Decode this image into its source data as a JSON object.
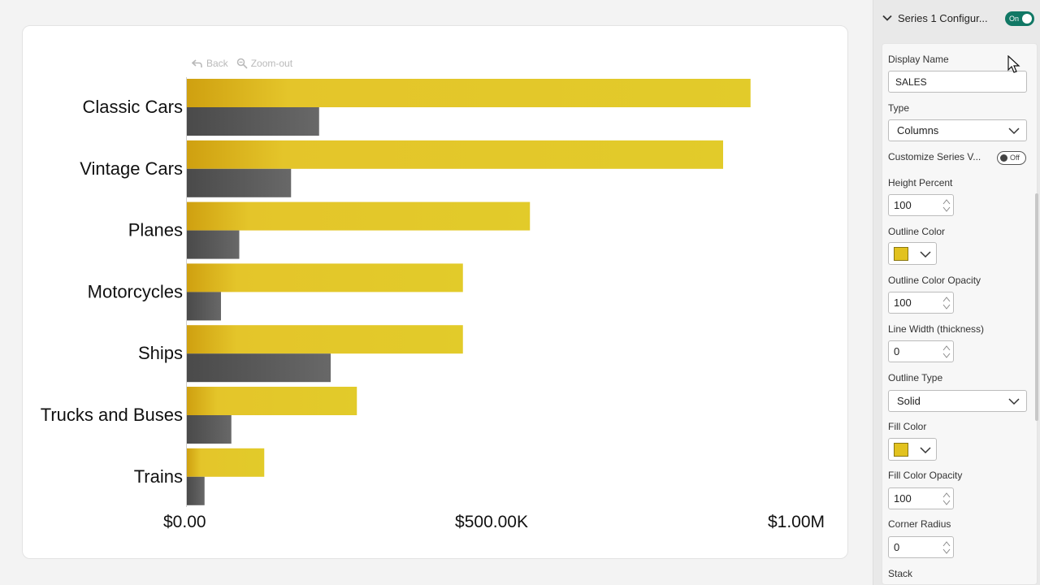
{
  "toolbar": {
    "back_label": "Back",
    "zoom_label": "Zoom-out"
  },
  "chart_data": {
    "type": "bar",
    "orientation": "horizontal",
    "categories": [
      "Classic Cars",
      "Vintage Cars",
      "Planes",
      "Motorcycles",
      "Ships",
      "Trucks and Buses",
      "Trains"
    ],
    "series": [
      {
        "values": [
          925000,
          880000,
          563000,
          453000,
          453000,
          279000,
          127000
        ],
        "color": "#e2c21e"
      },
      {
        "values": [
          217000,
          171000,
          86000,
          56000,
          236000,
          73000,
          29000
        ],
        "color": "#5a5a5a"
      }
    ],
    "xlim": [
      0,
      1000000
    ],
    "tick_labels": [
      "$0.00",
      "$500.00K",
      "$1.00M"
    ],
    "tick_values": [
      0,
      500000,
      1000000
    ],
    "grid": false,
    "legend": "none"
  },
  "panel": {
    "header_title": "Series 1 Configur...",
    "header_toggle": "On",
    "display_name_label": "Display Name",
    "display_name_value": "SALES",
    "type_label": "Type",
    "type_value": "Columns",
    "customize_label": "Customize Series V...",
    "customize_toggle": "Off",
    "height_percent_label": "Height Percent",
    "height_percent_value": "100",
    "outline_color_label": "Outline Color",
    "outline_color": "#e2c21e",
    "outline_opacity_label": "Outline Color Opacity",
    "outline_opacity_value": "100",
    "line_width_label": "Line Width (thickness)",
    "line_width_value": "0",
    "outline_type_label": "Outline Type",
    "outline_type_value": "Solid",
    "fill_color_label": "Fill Color",
    "fill_color": "#e2c21e",
    "fill_opacity_label": "Fill Color Opacity",
    "fill_opacity_value": "100",
    "corner_radius_label": "Corner Radius",
    "corner_radius_value": "0",
    "stack_label": "Stack"
  }
}
